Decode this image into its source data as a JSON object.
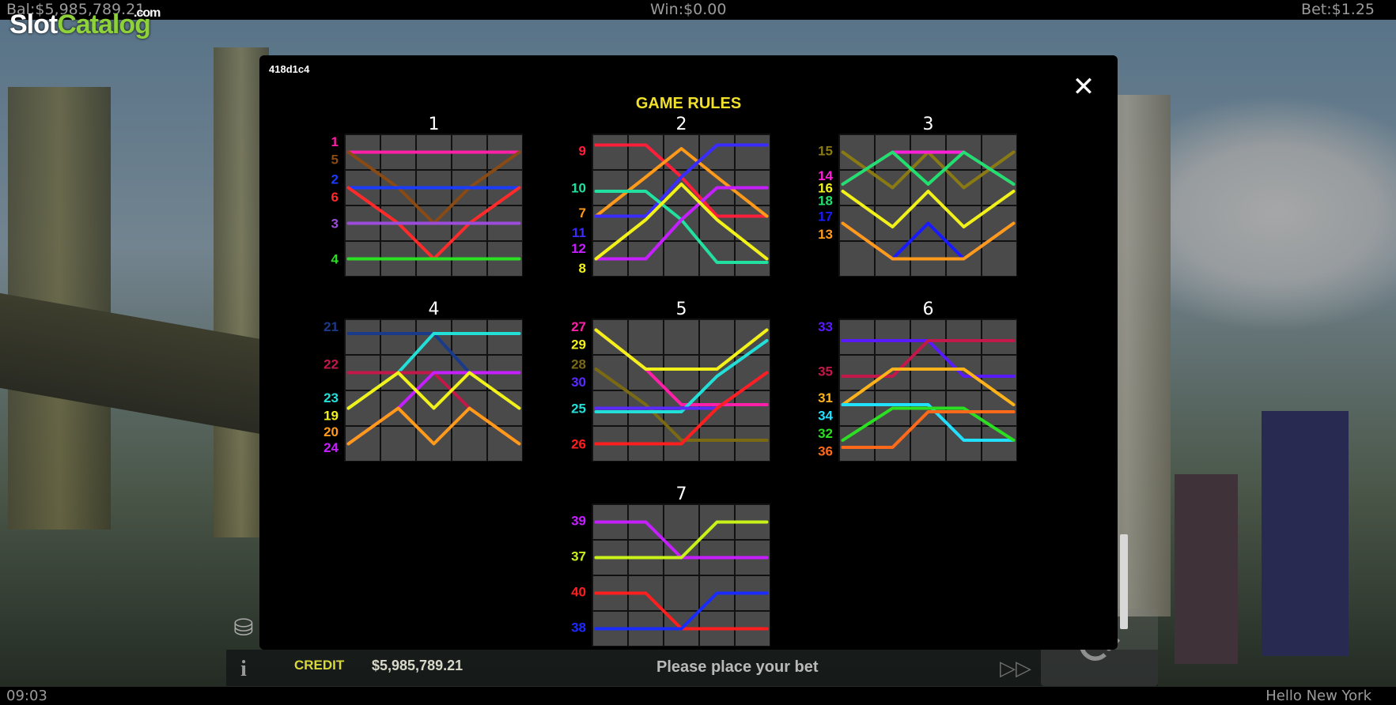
{
  "topbar": {
    "balance": "Bal:$5,985,789.21",
    "win": "Win:$0.00",
    "bet": "Bet:$1.25"
  },
  "watermark": {
    "part1": "Slot",
    "part2": "Catalog",
    "suffix": ".com"
  },
  "bottombar": {
    "clock": "09:03",
    "game_name": "Hello New York"
  },
  "controls": {
    "credit_label": "CREDIT",
    "credit_value": "$5,985,789.21",
    "status": "Please place your bet",
    "info_glyph": "i",
    "coins_icon": "coins-icon",
    "fast_forward_icon": "fast-forward-icon",
    "spin_icon": "spin-icon"
  },
  "modal": {
    "build_id": "418d1c4",
    "title": "GAME RULES",
    "close_glyph": "✕",
    "panels": [
      {
        "number": "1",
        "labels": [
          {
            "t": "1",
            "c": "#ff1fa8",
            "row": 0.2
          },
          {
            "t": "5",
            "c": "#8a4a14",
            "row": 0.7
          },
          {
            "t": "2",
            "c": "#1a3cff",
            "row": 1.25
          },
          {
            "t": "6",
            "c": "#ff2b2b",
            "row": 1.75
          },
          {
            "t": "3",
            "c": "#9b4cd9",
            "row": 2.5
          },
          {
            "t": "4",
            "c": "#2be021",
            "row": 3.5
          }
        ],
        "lines": [
          {
            "c": "#ff1fa8",
            "r": [
              0.5,
              0.5,
              0.5,
              0.5,
              0.5
            ]
          },
          {
            "c": "#8a4a14",
            "r": [
              0.5,
              1.5,
              2.5,
              1.5,
              0.5
            ]
          },
          {
            "c": "#1a3cff",
            "r": [
              1.5,
              1.5,
              1.5,
              1.5,
              1.5
            ]
          },
          {
            "c": "#ff2b2b",
            "r": [
              1.5,
              2.5,
              3.5,
              2.5,
              1.5
            ]
          },
          {
            "c": "#9b4cd9",
            "r": [
              2.5,
              2.5,
              2.5,
              2.5,
              2.5
            ]
          },
          {
            "c": "#2be021",
            "r": [
              3.5,
              3.5,
              3.5,
              3.5,
              3.5
            ]
          }
        ]
      },
      {
        "number": "2",
        "labels": [
          {
            "t": "9",
            "c": "#ff1f3a",
            "row": 0.45
          },
          {
            "t": "10",
            "c": "#22e0a0",
            "row": 1.5
          },
          {
            "t": "7",
            "c": "#ff9a1a",
            "row": 2.2
          },
          {
            "t": "11",
            "c": "#3a2bff",
            "row": 2.75
          },
          {
            "t": "12",
            "c": "#c61fff",
            "row": 3.2
          },
          {
            "t": "8",
            "c": "#f2f21a",
            "row": 3.75
          }
        ],
        "lines": [
          {
            "c": "#ff1f3a",
            "r": [
              0.3,
              0.3,
              1.2,
              2.3,
              2.3
            ]
          },
          {
            "c": "#ff9a1a",
            "r": [
              2.3,
              1.2,
              0.4,
              1.2,
              2.3
            ]
          },
          {
            "c": "#3a2bff",
            "r": [
              2.3,
              2.3,
              1.2,
              0.3,
              0.3
            ]
          },
          {
            "c": "#22e0a0",
            "r": [
              1.6,
              1.6,
              2.4,
              3.6,
              3.6
            ]
          },
          {
            "c": "#c61fff",
            "r": [
              3.5,
              3.5,
              2.4,
              1.5,
              1.5
            ]
          },
          {
            "c": "#f2f21a",
            "r": [
              3.5,
              2.4,
              1.4,
              2.4,
              3.5
            ]
          }
        ]
      },
      {
        "number": "3",
        "labels": [
          {
            "t": "15",
            "c": "#8a7a14",
            "row": 0.45
          },
          {
            "t": "14",
            "c": "#ff1fd8",
            "row": 1.15
          },
          {
            "t": "16",
            "c": "#f2f21a",
            "row": 1.5
          },
          {
            "t": "18",
            "c": "#22e070",
            "row": 1.85
          },
          {
            "t": "17",
            "c": "#1a1aff",
            "row": 2.3
          },
          {
            "t": "13",
            "c": "#ff9a1a",
            "row": 2.8
          }
        ],
        "lines": [
          {
            "c": "#8a7a14",
            "r": [
              0.5,
              1.5,
              0.5,
              1.5,
              0.5
            ]
          },
          {
            "c": "#ff1fd8",
            "r": [
              1.4,
              0.5,
              0.5,
              0.5,
              1.4
            ]
          },
          {
            "c": "#22e070",
            "r": [
              1.4,
              0.5,
              1.4,
              0.5,
              1.4
            ]
          },
          {
            "c": "#f2f21a",
            "r": [
              1.6,
              2.6,
              1.6,
              2.6,
              1.6
            ]
          },
          {
            "c": "#1a1aff",
            "r": [
              2.5,
              3.5,
              2.5,
              3.5,
              2.5
            ]
          },
          {
            "c": "#ff9a1a",
            "r": [
              2.5,
              3.5,
              3.5,
              3.5,
              2.5
            ]
          }
        ]
      },
      {
        "number": "4",
        "labels": [
          {
            "t": "21",
            "c": "#1a3a8a",
            "row": 0.2
          },
          {
            "t": "22",
            "c": "#c2184a",
            "row": 1.25
          },
          {
            "t": "23",
            "c": "#22e0d8",
            "row": 2.2
          },
          {
            "t": "19",
            "c": "#f2f21a",
            "row": 2.7
          },
          {
            "t": "20",
            "c": "#ff9a1a",
            "row": 3.15
          },
          {
            "t": "24",
            "c": "#c61fff",
            "row": 3.6
          }
        ],
        "lines": [
          {
            "c": "#1a3a8a",
            "r": [
              0.4,
              0.4,
              0.4,
              1.5,
              2.5
            ]
          },
          {
            "c": "#22e0d8",
            "r": [
              2.5,
              1.5,
              0.4,
              0.4,
              0.4
            ]
          },
          {
            "c": "#c2184a",
            "r": [
              1.5,
              1.5,
              1.5,
              2.5,
              3.5
            ]
          },
          {
            "c": "#c61fff",
            "r": [
              3.5,
              2.5,
              1.5,
              1.5,
              1.5
            ]
          },
          {
            "c": "#f2f21a",
            "r": [
              2.5,
              1.5,
              2.5,
              1.5,
              2.5
            ]
          },
          {
            "c": "#ff9a1a",
            "r": [
              3.5,
              2.5,
              3.5,
              2.5,
              3.5
            ]
          }
        ]
      },
      {
        "number": "5",
        "labels": [
          {
            "t": "27",
            "c": "#ff1fa8",
            "row": 0.2
          },
          {
            "t": "29",
            "c": "#f2f21a",
            "row": 0.7
          },
          {
            "t": "28",
            "c": "#7a6a14",
            "row": 1.25
          },
          {
            "t": "30",
            "c": "#5a2bff",
            "row": 1.75
          },
          {
            "t": "25",
            "c": "#22e0d8",
            "row": 2.5
          },
          {
            "t": "26",
            "c": "#ff1f1f",
            "row": 3.5
          }
        ],
        "lines": [
          {
            "c": "#ff1fa8",
            "r": [
              0.3,
              1.4,
              2.4,
              2.4,
              2.4
            ]
          },
          {
            "c": "#f2f21a",
            "r": [
              0.3,
              1.4,
              1.4,
              1.4,
              0.3
            ]
          },
          {
            "c": "#7a6a14",
            "r": [
              1.4,
              2.4,
              3.4,
              3.4,
              3.4
            ]
          },
          {
            "c": "#22e0d8",
            "r": [
              2.6,
              2.6,
              2.6,
              1.6,
              0.6
            ]
          },
          {
            "c": "#5a2bff",
            "r": [
              2.5,
              2.5,
              2.5,
              2.5,
              1.5
            ]
          },
          {
            "c": "#ff1f1f",
            "r": [
              3.5,
              3.5,
              3.5,
              2.5,
              1.5
            ]
          }
        ]
      },
      {
        "number": "6",
        "labels": [
          {
            "t": "33",
            "c": "#5a1aff",
            "row": 0.2
          },
          {
            "t": "35",
            "c": "#c2184a",
            "row": 1.45
          },
          {
            "t": "31",
            "c": "#ffb31a",
            "row": 2.2
          },
          {
            "t": "34",
            "c": "#22e0ff",
            "row": 2.7
          },
          {
            "t": "32",
            "c": "#2be021",
            "row": 3.2
          },
          {
            "t": "36",
            "c": "#ff6a1a",
            "row": 3.7
          }
        ],
        "lines": [
          {
            "c": "#5a1aff",
            "r": [
              0.6,
              0.6,
              0.6,
              1.6,
              1.6
            ]
          },
          {
            "c": "#c2184a",
            "r": [
              1.6,
              1.6,
              0.6,
              0.6,
              0.6
            ]
          },
          {
            "c": "#ffb31a",
            "r": [
              2.4,
              1.4,
              1.4,
              1.4,
              2.4
            ]
          },
          {
            "c": "#22e0ff",
            "r": [
              2.4,
              2.4,
              2.4,
              3.4,
              3.4
            ]
          },
          {
            "c": "#2be021",
            "r": [
              3.4,
              2.5,
              2.5,
              2.5,
              3.4
            ]
          },
          {
            "c": "#ff6a1a",
            "r": [
              3.6,
              3.6,
              2.6,
              2.6,
              2.6
            ]
          }
        ]
      },
      {
        "number": "7",
        "labels": [
          {
            "t": "39",
            "c": "#c61fff",
            "row": 0.45
          },
          {
            "t": "37",
            "c": "#c8f21a",
            "row": 1.45
          },
          {
            "t": "40",
            "c": "#ff1f1f",
            "row": 2.45
          },
          {
            "t": "38",
            "c": "#1a2bff",
            "row": 3.45
          }
        ],
        "lines": [
          {
            "c": "#c61fff",
            "r": [
              0.5,
              0.5,
              1.5,
              1.5,
              1.5
            ]
          },
          {
            "c": "#c8f21a",
            "r": [
              1.5,
              1.5,
              1.5,
              0.5,
              0.5
            ]
          },
          {
            "c": "#ff1f1f",
            "r": [
              2.5,
              2.5,
              3.5,
              3.5,
              3.5
            ]
          },
          {
            "c": "#1a2bff",
            "r": [
              3.5,
              3.5,
              3.5,
              2.5,
              2.5
            ]
          }
        ]
      }
    ]
  }
}
